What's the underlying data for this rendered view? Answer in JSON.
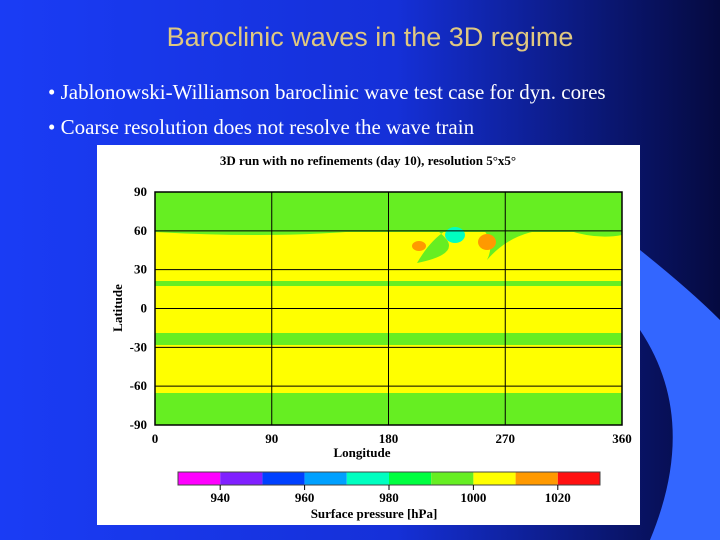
{
  "title": "Baroclinic waves in the 3D regime",
  "bullets": [
    "Jablonowski-Williamson baroclinic wave test case for dyn. cores",
    "Coarse resolution does not resolve the wave train"
  ],
  "figure": {
    "title": "3D run with no refinements (day 10), resolution 5°x5°",
    "x_label": "Longitude",
    "y_label": "Latitude",
    "xticks": [
      0,
      90,
      180,
      270,
      360
    ],
    "yticks": [
      90,
      60,
      30,
      0,
      -30,
      -60,
      -90
    ],
    "colorbar_ticks": [
      940,
      960,
      980,
      1000,
      1020
    ],
    "colorbar_colors": [
      "#ff00ff",
      "#8020ff",
      "#0040ff",
      "#00a0ff",
      "#00ffc0",
      "#00ff40",
      "#66ee22",
      "#ffff00",
      "#ff9900",
      "#ff1010"
    ],
    "colorbar_label": "Surface pressure [hPa]"
  }
}
